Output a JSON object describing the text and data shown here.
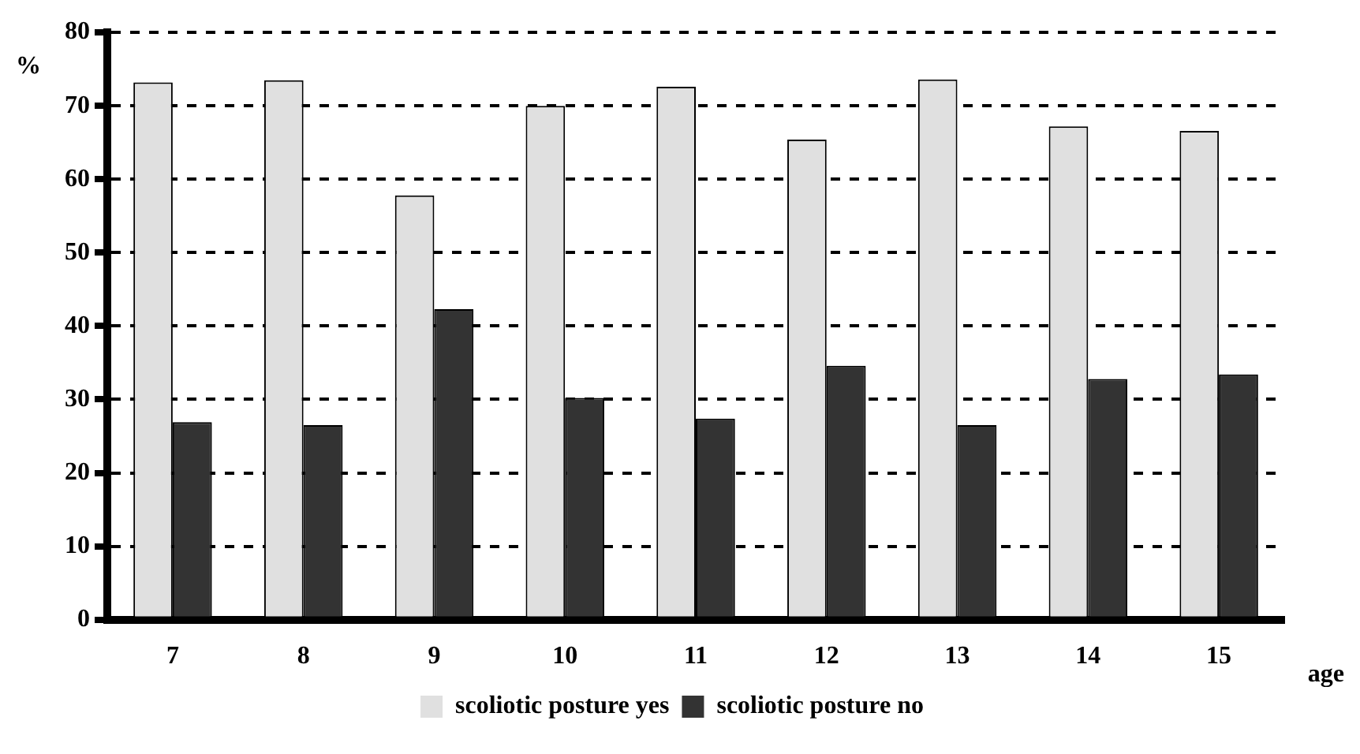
{
  "chart_data": {
    "type": "bar",
    "categories": [
      "7",
      "8",
      "9",
      "10",
      "11",
      "12",
      "13",
      "14",
      "15"
    ],
    "series": [
      {
        "name": "scoliotic posture yes",
        "color": "#e0e0e0",
        "values": [
          73.2,
          73.5,
          57.8,
          70.0,
          72.6,
          65.4,
          73.6,
          67.2,
          66.6
        ]
      },
      {
        "name": "scoliotic posture no",
        "color": "#333333",
        "values": [
          26.9,
          26.5,
          42.3,
          30.2,
          27.4,
          34.6,
          26.5,
          32.8,
          33.4
        ]
      }
    ],
    "xlabel": "age",
    "ylabel": "%",
    "ylim": [
      0,
      80
    ],
    "yticks": [
      0,
      10,
      20,
      30,
      40,
      50,
      60,
      70,
      80
    ],
    "grid": "y",
    "line_style": "dashed",
    "legend": "bottom"
  }
}
